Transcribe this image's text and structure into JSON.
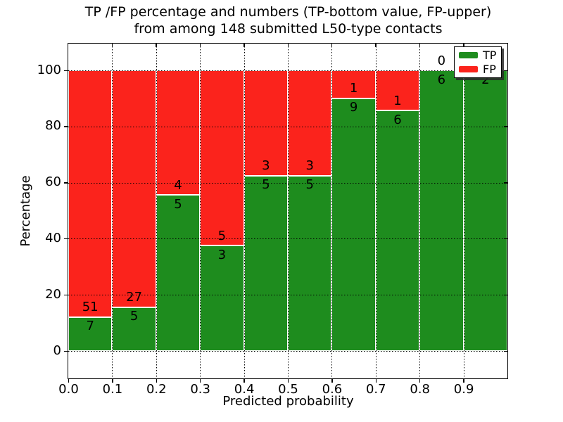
{
  "title": {
    "line1": "TP /FP percentage and numbers (TP-bottom value, FP-upper)",
    "line2": "from among 148 submitted L50-type contacts"
  },
  "axes": {
    "xlabel": "Predicted probability",
    "ylabel": "Percentage",
    "xtick_labels": [
      "0.0",
      "0.1",
      "0.2",
      "0.3",
      "0.4",
      "0.5",
      "0.6",
      "0.7",
      "0.8",
      "0.9"
    ],
    "ytick_values": [
      0,
      20,
      40,
      60,
      80,
      100
    ]
  },
  "legend": {
    "items": [
      {
        "label": "TP",
        "color": "#1E8C1E"
      },
      {
        "label": "FP",
        "color": "#FB231C"
      }
    ]
  },
  "chart_data": {
    "type": "bar",
    "stacked": true,
    "normalized_to_percent": true,
    "title": "TP /FP percentage and numbers (TP-bottom value, FP-upper) from among 148 submitted L50-type contacts",
    "xlabel": "Predicted probability",
    "ylabel": "Percentage",
    "x_bins": [
      "0.0-0.1",
      "0.1-0.2",
      "0.2-0.3",
      "0.3-0.4",
      "0.4-0.5",
      "0.5-0.6",
      "0.6-0.7",
      "0.7-0.8",
      "0.8-0.9",
      "0.9-1.0"
    ],
    "series": [
      {
        "name": "TP",
        "color": "#1E8C1E",
        "counts": [
          7,
          5,
          5,
          3,
          5,
          5,
          9,
          6,
          6,
          2
        ]
      },
      {
        "name": "FP",
        "color": "#FB231C",
        "counts": [
          51,
          27,
          4,
          5,
          3,
          3,
          1,
          1,
          0,
          0
        ]
      }
    ],
    "tp_percent": [
      12.07,
      15.63,
      55.56,
      37.5,
      62.5,
      62.5,
      90.0,
      85.71,
      100.0,
      100.0
    ],
    "total_contacts": 148,
    "xlim": [
      0.0,
      1.0
    ],
    "ylim": [
      -9.8,
      109.6
    ],
    "grid": true,
    "grid_style": "dotted",
    "legend_position": "upper right"
  }
}
